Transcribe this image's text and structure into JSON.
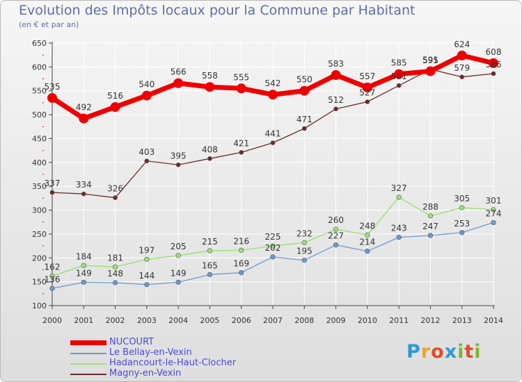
{
  "colors": {
    "nucourt": "#ee0000",
    "bellay": "#6b9bd0",
    "hadancourt": "#9fe07a",
    "magny": "#6b2a2a",
    "axis": "#444444",
    "grid": "#ffffff",
    "text": "#333333"
  },
  "logo": {
    "letters": [
      "P",
      "r",
      "o",
      "x",
      "i",
      "t",
      "i"
    ],
    "colors": [
      "#2b9ad6",
      "#f2a516",
      "#e64b26",
      "#2b9ad6",
      "#7bb731",
      "#e64b26",
      "#7bb731"
    ]
  },
  "chart_data": {
    "type": "line",
    "title": "Evolution des Impôts locaux pour la Commune par Habitant",
    "subtitle": "(en € et par an)",
    "x": [
      "2000",
      "2001",
      "2002",
      "2003",
      "2004",
      "2005",
      "2006",
      "2007",
      "2008",
      "2009",
      "2010",
      "2011",
      "2012",
      "2013",
      "2014"
    ],
    "ylim": [
      100,
      650
    ],
    "yticks": [
      100,
      150,
      200,
      250,
      300,
      350,
      400,
      450,
      500,
      550,
      600,
      650
    ],
    "grid": true,
    "legend_position": "bottom-left",
    "series": [
      {
        "name": "NUCOURT",
        "values": [
          535,
          492,
          516,
          540,
          566,
          558,
          555,
          542,
          550,
          583,
          557,
          585,
          591,
          624,
          608
        ]
      },
      {
        "name": "Le Bellay-en-Vexin",
        "values": [
          136,
          149,
          148,
          144,
          149,
          165,
          169,
          202,
          195,
          227,
          214,
          243,
          247,
          253,
          274
        ]
      },
      {
        "name": "Hadancourt-le-Haut-Clocher",
        "values": [
          162,
          184,
          181,
          197,
          205,
          215,
          216,
          225,
          232,
          260,
          248,
          327,
          288,
          305,
          301
        ]
      },
      {
        "name": "Magny-en-Vexin",
        "values": [
          337,
          334,
          326,
          403,
          395,
          408,
          421,
          441,
          471,
          512,
          527,
          561,
          595,
          579,
          586
        ]
      }
    ]
  }
}
